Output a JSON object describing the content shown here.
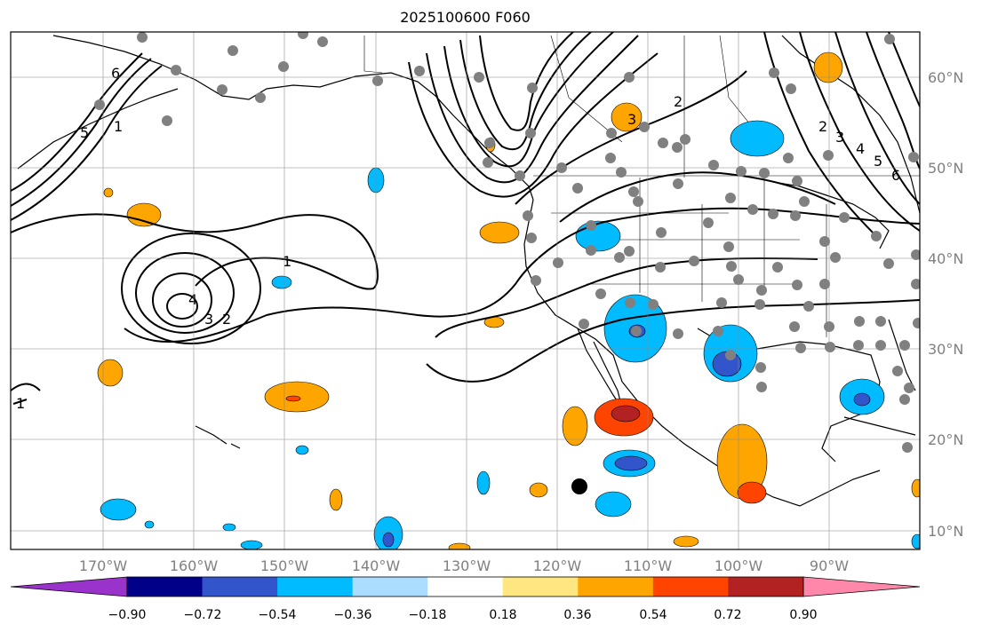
{
  "title": "2025100600 F060",
  "map": {
    "lon_labels": [
      "170°W",
      "160°W",
      "150°W",
      "140°W",
      "130°W",
      "120°W",
      "110°W",
      "100°W",
      "90°W"
    ],
    "lat_labels": [
      "60°N",
      "50°N",
      "40°N",
      "30°N",
      "20°N",
      "10°N"
    ],
    "contour_labels": [
      "1",
      "2",
      "3",
      "4",
      "5",
      "6",
      "1",
      "2",
      "3",
      "3",
      "4",
      "5",
      "6",
      "2",
      "1"
    ],
    "colors": {
      "label": "#808080",
      "contour": "#000000",
      "station": "#808080"
    }
  },
  "colorbar": {
    "tick_labels": [
      "−0.90",
      "−0.72",
      "−0.54",
      "−0.36",
      "−0.18",
      "0.18",
      "0.36",
      "0.54",
      "0.72",
      "0.90"
    ],
    "bins": [
      "#9933cc",
      "#000088",
      "#3355cc",
      "#00bbff",
      "#aaddff",
      "#ffffff",
      "#ffe680",
      "#ffa500",
      "#ff4400",
      "#b22222",
      "#ff88aa"
    ]
  }
}
